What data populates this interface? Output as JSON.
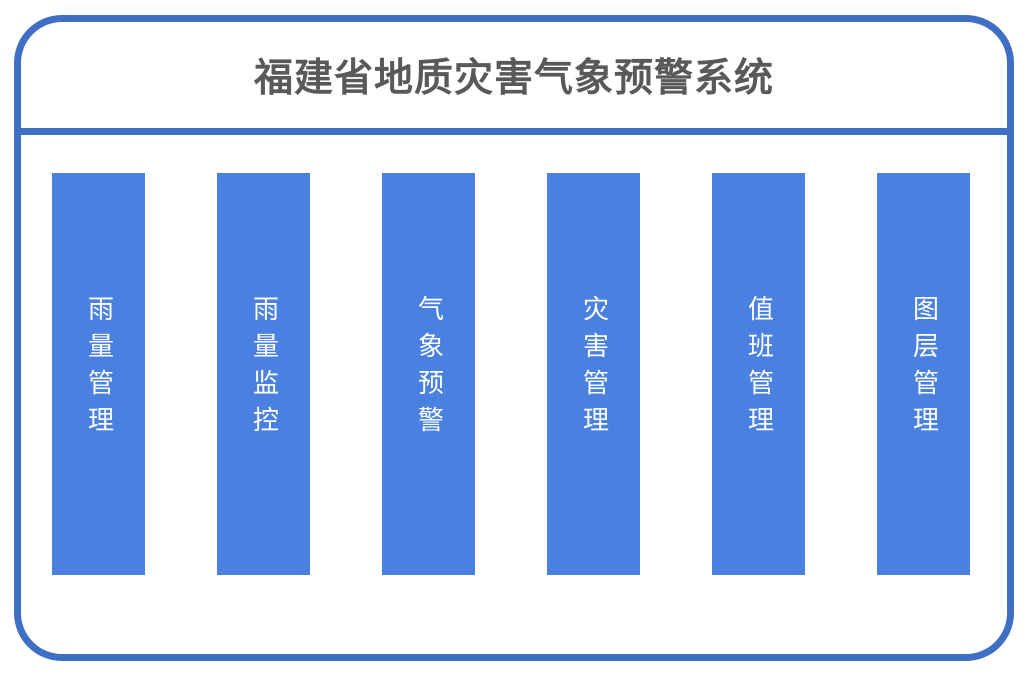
{
  "title": "福建省地质灾害气象预警系统",
  "colors": {
    "frame_border": "#3e6fc4",
    "divider": "#3e6fc4",
    "bar_fill": "#4a80e0",
    "bar_text": "#ffffff",
    "title_text": "#595959",
    "background": "#ffffff"
  },
  "menu": {
    "items": [
      {
        "label": "雨量管理"
      },
      {
        "label": "雨量监控"
      },
      {
        "label": "气象预警"
      },
      {
        "label": "灾害管理"
      },
      {
        "label": "值班管理"
      },
      {
        "label": "图层管理"
      }
    ]
  }
}
